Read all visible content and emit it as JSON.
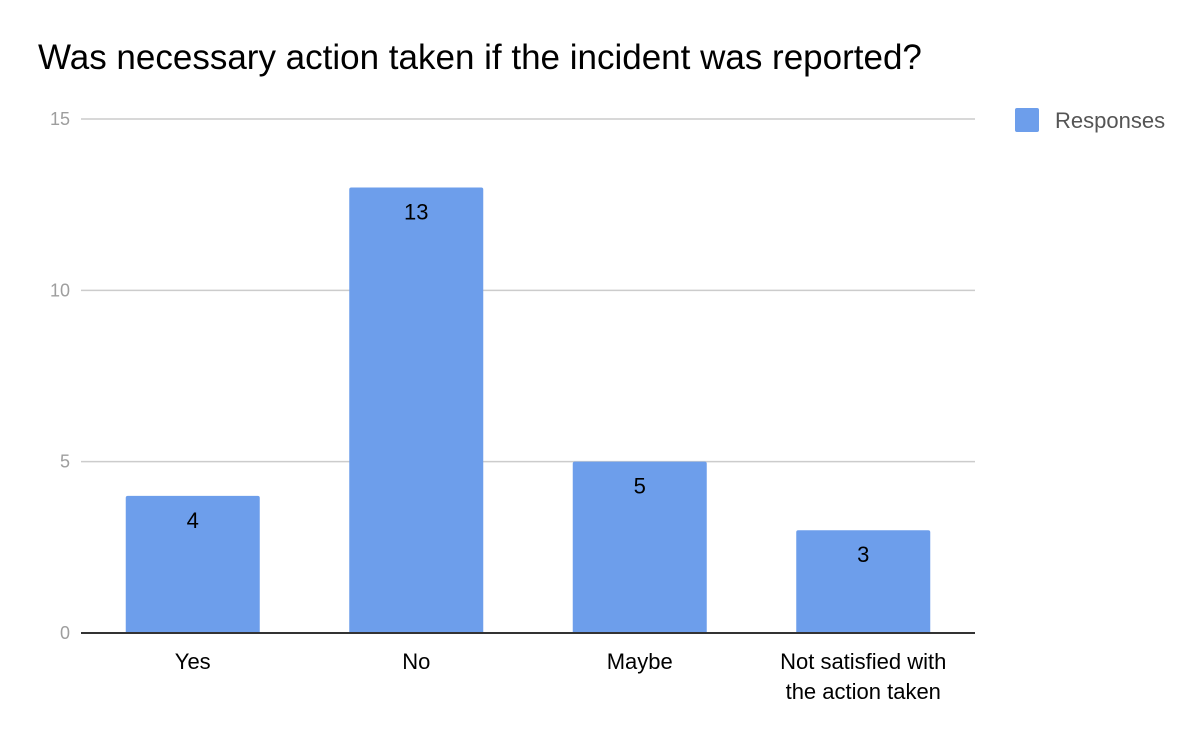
{
  "chart_data": {
    "type": "bar",
    "title": "Was necessary action taken if the incident was reported?",
    "categories": [
      "Yes",
      "No",
      "Maybe",
      "Not satisfied with the action taken"
    ],
    "category_lines": [
      [
        "Yes"
      ],
      [
        "No"
      ],
      [
        "Maybe"
      ],
      [
        "Not satisfied with",
        "the action taken"
      ]
    ],
    "series": [
      {
        "name": "Responses",
        "values": [
          4,
          13,
          5,
          3
        ],
        "color": "#6d9eeb"
      }
    ],
    "data_labels": [
      "4",
      "13",
      "5",
      "3"
    ],
    "xlabel": "",
    "ylabel": "",
    "ylim": [
      0,
      15
    ],
    "yticks": [
      0,
      5,
      10,
      15
    ],
    "ytick_labels": [
      "0",
      "5",
      "10",
      "15"
    ],
    "grid": true,
    "grid_color": "#cccccc",
    "axis_color": "#333333",
    "legend_position": "top-right"
  }
}
